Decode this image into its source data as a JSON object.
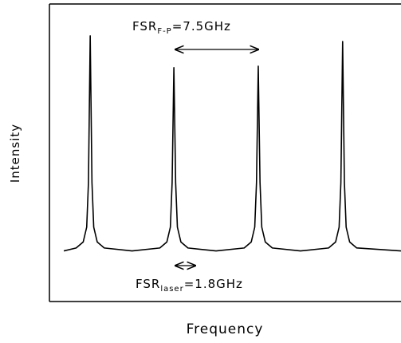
{
  "chart_data": {
    "type": "line",
    "xlabel": "Frequency",
    "ylabel": "Intensity",
    "annotations": [
      {
        "text": "FSR",
        "subscript": "F-P",
        "suffix": "=7.5GHz"
      },
      {
        "text": "FSR",
        "subscript": "laser",
        "suffix": "=1.8GHz"
      }
    ],
    "xlim": [
      0,
      100
    ],
    "ylim": [
      0,
      100
    ],
    "color": "#000000",
    "x": [
      4.1,
      7.6,
      9.6,
      10.6,
      11.1,
      11.6,
      12.1,
      12.6,
      13.6,
      15.6,
      23.5,
      31.4,
      33.4,
      34.4,
      34.9,
      35.4,
      35.9,
      36.4,
      37.4,
      39.4,
      47.4,
      55.4,
      57.4,
      58.4,
      58.9,
      59.4,
      59.9,
      60.4,
      61.4,
      63.4,
      71.4,
      79.4,
      81.4,
      82.4,
      82.9,
      83.4,
      83.9,
      84.4,
      85.4,
      87.4,
      100
    ],
    "values": [
      17,
      18,
      20,
      25,
      40,
      89.3,
      40,
      25,
      20,
      18,
      17,
      18,
      20,
      25,
      40,
      78.6,
      40,
      25,
      20,
      18,
      17,
      18,
      20,
      25,
      40,
      79.1,
      40,
      25,
      20,
      18,
      17,
      18,
      20,
      25,
      40,
      87.4,
      40,
      25,
      20,
      18,
      17
    ]
  }
}
